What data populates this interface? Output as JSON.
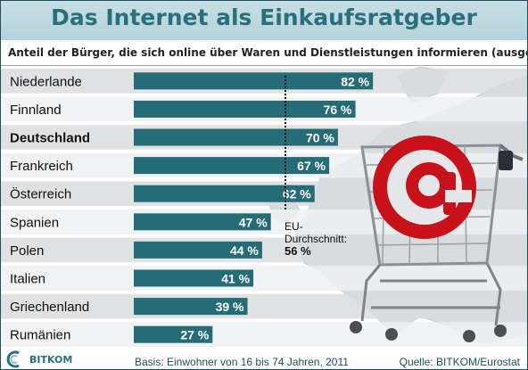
{
  "header": {
    "title": "Das Internet als Einkaufsratgeber",
    "subtitle": "Anteil der Bürger, die sich online über Waren und Dienstleistungen informieren (ausgewählte Länder)"
  },
  "footer": {
    "basis": "Basis: Einwohner von 16 bis 74 Jahren, 2011",
    "source": "Quelle: BITKOM/Eurostat",
    "logo_text": "BITKOM"
  },
  "eu_average": {
    "label_line1": "EU-",
    "label_line2": "Durchschnitt:",
    "value_label": "56 %",
    "value": 56
  },
  "colors": {
    "bar": "#256c76",
    "bar_label": "#ffffff",
    "title": "#2a6f7c",
    "band_dark": "#d9dcdd",
    "band_light": "#eef0f1",
    "map": "#d7dde2"
  },
  "chart_data": {
    "type": "bar",
    "orientation": "horizontal",
    "categories": [
      "Niederlande",
      "Finnland",
      "Deutschland",
      "Frankreich",
      "Österreich",
      "Spanien",
      "Polen",
      "Italien",
      "Griechenland",
      "Rumänien"
    ],
    "values": [
      82,
      76,
      70,
      67,
      62,
      47,
      44,
      41,
      39,
      27
    ],
    "value_labels": [
      "82 %",
      "76 %",
      "70 %",
      "67 %",
      "62 %",
      "47 %",
      "44 %",
      "41 %",
      "39 %",
      "27 %"
    ],
    "highlight": "Deutschland",
    "unit": "%",
    "xlim": [
      0,
      100
    ],
    "reference_line": 56,
    "title": "Das Internet als Einkaufsratgeber",
    "xlabel": "",
    "ylabel": "",
    "grid": false,
    "legend": "none"
  }
}
